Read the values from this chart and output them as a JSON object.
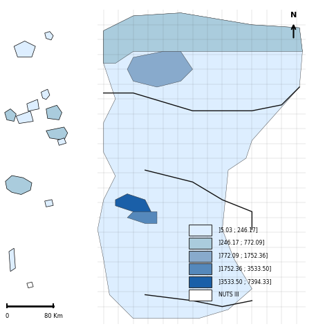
{
  "title": "",
  "legend_labels": [
    "]5.03 ; 246.17]",
    "]246.17 ; 772.09]",
    "]772.09 ; 1752.36]",
    "]1752.36 ; 3533.50]",
    "]3533.50 ; 7394.33]",
    "NUTS III"
  ],
  "legend_colors": [
    "#ddeeff",
    "#aaccdd",
    "#88aacc",
    "#5588bb",
    "#1a5fa8",
    "#ffffff"
  ],
  "scale_bar_label": "80 Km",
  "background_color": "#ffffff",
  "map_bg": "#f0f0f0",
  "border_color": "#333333",
  "nuts_border_color": "#111111",
  "inset_box_color": "#555555"
}
